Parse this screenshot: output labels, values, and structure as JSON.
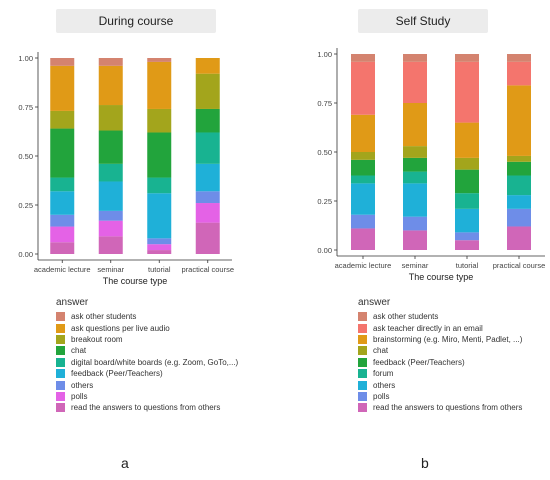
{
  "panels": [
    {
      "title": "During course",
      "panel_label": "a",
      "legend_title": "answer"
    },
    {
      "title": "Self Study",
      "panel_label": "b",
      "legend_title": "answer"
    }
  ],
  "chart_data": [
    {
      "type": "bar",
      "stacked": true,
      "title": "During course",
      "xlabel": "The course type",
      "ylabel": "",
      "ylim": [
        0,
        1
      ],
      "yticks": [
        "0.00",
        "0.25",
        "0.50",
        "0.75",
        "1.00"
      ],
      "grid": false,
      "legend_position": "bottom",
      "categories": [
        "academic lecture",
        "seminar",
        "tutorial",
        "practical course"
      ],
      "series": [
        {
          "name": "ask other students",
          "color": "#d4836f",
          "values": [
            0.04,
            0.04,
            0.02,
            0.0
          ]
        },
        {
          "name": "ask questions per live audio",
          "color": "#e09a17",
          "values": [
            0.23,
            0.2,
            0.24,
            0.08
          ]
        },
        {
          "name": "breakout room",
          "color": "#a3a51c",
          "values": [
            0.09,
            0.13,
            0.12,
            0.18
          ]
        },
        {
          "name": "chat",
          "color": "#22a43c",
          "values": [
            0.25,
            0.17,
            0.23,
            0.12
          ]
        },
        {
          "name": "digital board/white boards (e.g. Zoom, GoTo,...)",
          "color": "#18b391",
          "values": [
            0.07,
            0.09,
            0.08,
            0.16
          ]
        },
        {
          "name": "feedback (Peer/Teachers)",
          "color": "#1fb0d8",
          "values": [
            0.12,
            0.15,
            0.23,
            0.14
          ]
        },
        {
          "name": "others",
          "color": "#6e8de8",
          "values": [
            0.06,
            0.05,
            0.03,
            0.06
          ]
        },
        {
          "name": "polls",
          "color": "#e462e6",
          "values": [
            0.08,
            0.08,
            0.03,
            0.1
          ]
        },
        {
          "name": "read the answers to questions from others",
          "color": "#d066b8",
          "values": [
            0.06,
            0.09,
            0.02,
            0.16
          ]
        }
      ]
    },
    {
      "type": "bar",
      "stacked": true,
      "title": "Self Study",
      "xlabel": "The course type",
      "ylabel": "",
      "ylim": [
        0,
        1
      ],
      "yticks": [
        "0.00",
        "0.25",
        "0.50",
        "0.75",
        "1.00"
      ],
      "grid": false,
      "legend_position": "bottom",
      "categories": [
        "academic lecture",
        "seminar",
        "tutorial",
        "practical course"
      ],
      "series": [
        {
          "name": "ask other students",
          "color": "#d4836f",
          "values": [
            0.04,
            0.04,
            0.04,
            0.04
          ]
        },
        {
          "name": "ask teacher directly in an email",
          "color": "#f4756d",
          "values": [
            0.27,
            0.21,
            0.31,
            0.12
          ]
        },
        {
          "name": "brainstorming (e.g. Miro, Menti, Padlet, ...)",
          "color": "#e09a17",
          "values": [
            0.19,
            0.22,
            0.18,
            0.36
          ]
        },
        {
          "name": "chat",
          "color": "#a3a51c",
          "values": [
            0.04,
            0.06,
            0.06,
            0.03
          ]
        },
        {
          "name": "feedback (Peer/Teachers)",
          "color": "#22a43c",
          "values": [
            0.08,
            0.07,
            0.12,
            0.07
          ]
        },
        {
          "name": "forum",
          "color": "#18b391",
          "values": [
            0.04,
            0.06,
            0.08,
            0.1
          ]
        },
        {
          "name": "others",
          "color": "#1fb0d8",
          "values": [
            0.16,
            0.17,
            0.12,
            0.07
          ]
        },
        {
          "name": "polls",
          "color": "#6e8de8",
          "values": [
            0.07,
            0.07,
            0.04,
            0.09
          ]
        },
        {
          "name": "read the answers to questions from others",
          "color": "#d066b8",
          "values": [
            0.11,
            0.1,
            0.05,
            0.12
          ]
        }
      ]
    }
  ]
}
